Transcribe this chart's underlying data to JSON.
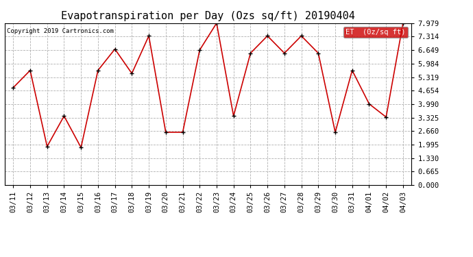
{
  "title": "Evapotranspiration per Day (Ozs sq/ft) 20190404",
  "copyright": "Copyright 2019 Cartronics.com",
  "legend_label": "ET  (0z/sq ft)",
  "dates": [
    "03/11",
    "03/12",
    "03/13",
    "03/14",
    "03/15",
    "03/16",
    "03/17",
    "03/18",
    "03/19",
    "03/20",
    "03/21",
    "03/22",
    "03/23",
    "03/24",
    "03/25",
    "03/26",
    "03/27",
    "03/28",
    "03/29",
    "03/30",
    "03/31",
    "04/01",
    "04/02",
    "04/03"
  ],
  "values": [
    4.8,
    5.65,
    1.9,
    3.4,
    1.85,
    5.65,
    6.7,
    5.5,
    7.35,
    2.6,
    2.6,
    6.65,
    7.979,
    3.4,
    6.5,
    7.35,
    6.5,
    7.35,
    6.5,
    2.6,
    5.65,
    4.0,
    3.35,
    7.979
  ],
  "yticks": [
    0.0,
    0.665,
    1.33,
    1.995,
    2.66,
    3.325,
    3.99,
    4.654,
    5.319,
    5.984,
    6.649,
    7.314,
    7.979
  ],
  "ytick_labels": [
    "0.000",
    "0.665",
    "1.330",
    "1.995",
    "2.660",
    "3.325",
    "3.990",
    "4.654",
    "5.319",
    "5.984",
    "6.649",
    "7.314",
    "7.979"
  ],
  "ylim": [
    0.0,
    7.979
  ],
  "line_color": "#cc0000",
  "marker_color": "#000000",
  "bg_color": "#ffffff",
  "grid_color": "#b0b0b0",
  "title_fontsize": 11,
  "tick_fontsize": 7.5,
  "legend_bg": "#cc0000",
  "legend_text_color": "#ffffff"
}
